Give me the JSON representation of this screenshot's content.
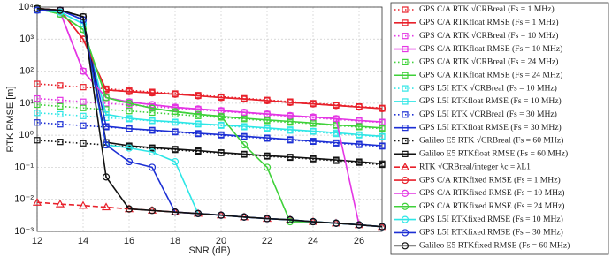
{
  "chart_data": {
    "type": "line",
    "x_label": "SNR (dB)",
    "y_label": "RTK RMSE [m]",
    "x": [
      12,
      13,
      14,
      15,
      16,
      17,
      18,
      19,
      20,
      21,
      22,
      23,
      24,
      25,
      26,
      27
    ],
    "xlim": [
      12,
      27
    ],
    "xticks": [
      12,
      14,
      16,
      18,
      20,
      22,
      24,
      26
    ],
    "ylim": [
      0.001,
      10000
    ],
    "log_y": true,
    "grid": true,
    "legend": "outside right",
    "yticks": [
      {
        "value": 0.001,
        "label": "10⁻³"
      },
      {
        "value": 0.01,
        "label": "10⁻²"
      },
      {
        "value": 0.1,
        "label": "10⁻¹"
      },
      {
        "value": 1,
        "label": "10⁰"
      },
      {
        "value": 10,
        "label": "10¹"
      },
      {
        "value": 100,
        "label": "10²"
      },
      {
        "value": 1000,
        "label": "10³"
      },
      {
        "value": 10000,
        "label": "10⁴"
      }
    ],
    "series": [
      {
        "name": "GPS C/A RTK √CRBreal (Fs = 1 MHz)",
        "color": "#e8212b",
        "dash": "dotted",
        "marker": "square",
        "values": [
          40,
          35.6,
          31.7,
          28.3,
          25.2,
          22.5,
          20,
          17.8,
          15.9,
          14.2,
          12.6,
          11.2,
          10,
          8.9,
          7.9,
          7.1
        ]
      },
      {
        "name": "GPS C/A RTKfloat RMSE (Fs = 1 MHz)",
        "color": "#e8212b",
        "dash": "solid",
        "marker": "square",
        "values": [
          9000,
          8000,
          1000,
          26,
          23,
          21,
          19,
          17,
          15,
          13.5,
          12,
          10.6,
          9.5,
          8.5,
          7.6,
          6.8
        ]
      },
      {
        "name": "GPS C/A RTK √CRBreal (Fs = 10 MHz)",
        "color": "#e436e4",
        "dash": "dotted",
        "marker": "square",
        "values": [
          14,
          12.5,
          11.1,
          9.9,
          8.8,
          7.9,
          7.0,
          6.3,
          5.6,
          5.0,
          4.4,
          3.9,
          3.5,
          3.1,
          2.8,
          2.5
        ]
      },
      {
        "name": "GPS C/A RTKfloat RMSE (Fs = 10 MHz)",
        "color": "#e436e4",
        "dash": "solid",
        "marker": "square",
        "values": [
          8000,
          7000,
          100,
          15,
          11,
          9,
          7.5,
          6.6,
          5.9,
          5.2,
          4.6,
          4.1,
          3.7,
          3.3,
          2.9,
          2.6
        ]
      },
      {
        "name": "GPS C/A RTK √CRBreal (Fs = 24 MHz)",
        "color": "#3fd13a",
        "dash": "dotted",
        "marker": "square",
        "values": [
          9,
          8.0,
          7.1,
          6.4,
          5.7,
          5.1,
          4.5,
          4.0,
          3.6,
          3.2,
          2.8,
          2.5,
          2.3,
          2.0,
          1.8,
          1.6
        ]
      },
      {
        "name": "GPS C/A RTKfloat RMSE (Fs = 24 MHz)",
        "color": "#3fd13a",
        "dash": "solid",
        "marker": "square",
        "values": [
          9000,
          6000,
          2000,
          15,
          10,
          7,
          5.5,
          4.5,
          3.9,
          3.4,
          3.0,
          2.7,
          2.4,
          2.1,
          1.9,
          1.7
        ]
      },
      {
        "name": "GPS L5I RTK √CRBreal (Fs = 10 MHz)",
        "color": "#2ee6e6",
        "dash": "dotted",
        "marker": "square",
        "values": [
          5,
          4.5,
          4.0,
          3.5,
          3.2,
          2.8,
          2.5,
          2.2,
          2.0,
          1.8,
          1.6,
          1.4,
          1.3,
          1.1,
          1.0,
          0.89
        ]
      },
      {
        "name": "GPS L5I RTKfloat RMSE (Fs = 10 MHz)",
        "color": "#2ee6e6",
        "dash": "solid",
        "marker": "square",
        "values": [
          8000,
          7000,
          3000,
          4.5,
          3.4,
          2.9,
          2.6,
          2.3,
          2.1,
          1.9,
          1.7,
          1.5,
          1.35,
          1.2,
          1.05,
          0.93
        ]
      },
      {
        "name": "GPS L5I RTK √CRBreal (Fs = 30 MHz)",
        "color": "#1c2fd4",
        "dash": "dotted",
        "marker": "square",
        "values": [
          2.5,
          2.2,
          2.0,
          1.8,
          1.6,
          1.4,
          1.25,
          1.1,
          1.0,
          0.89,
          0.79,
          0.7,
          0.63,
          0.56,
          0.5,
          0.45
        ]
      },
      {
        "name": "GPS L5I RTKfloat RMSE (Fs = 30 MHz)",
        "color": "#1c2fd4",
        "dash": "solid",
        "marker": "square",
        "values": [
          8000,
          8000,
          4000,
          1.9,
          1.6,
          1.45,
          1.3,
          1.15,
          1.05,
          0.93,
          0.83,
          0.74,
          0.66,
          0.59,
          0.53,
          0.47
        ]
      },
      {
        "name": "Galileo E5 RTK √CRBreal (Fs = 60 MHz)",
        "color": "#111111",
        "dash": "dotted",
        "marker": "square",
        "values": [
          0.7,
          0.62,
          0.56,
          0.5,
          0.44,
          0.39,
          0.35,
          0.31,
          0.28,
          0.25,
          0.22,
          0.2,
          0.18,
          0.16,
          0.14,
          0.12
        ]
      },
      {
        "name": "Galileo E5 RTKfloat RMSE (Fs = 60 MHz)",
        "color": "#111111",
        "dash": "solid",
        "marker": "square",
        "values": [
          9000,
          8000,
          5000,
          0.6,
          0.47,
          0.41,
          0.37,
          0.33,
          0.29,
          0.26,
          0.23,
          0.21,
          0.19,
          0.17,
          0.15,
          0.13
        ]
      },
      {
        "name": "RTK √CRBreal/integer λc = λL1",
        "color": "#e8212b",
        "dash": "dashed",
        "marker": "triangle",
        "values": [
          0.008,
          0.0071,
          0.0064,
          0.0057,
          0.005,
          0.0045,
          0.004,
          0.0036,
          0.0032,
          0.0028,
          0.0025,
          0.0023,
          0.002,
          0.0018,
          0.0016,
          0.0014
        ]
      },
      {
        "name": "GPS C/A RTKfixed RMSE (Fs = 1 MHz)",
        "color": "#e8212b",
        "dash": "solid",
        "marker": "circle",
        "values": [
          9000,
          8000,
          1000,
          26,
          23,
          21,
          19,
          17,
          15,
          13.5,
          12,
          10.6,
          9.5,
          8.5,
          7.6,
          6.8
        ]
      },
      {
        "name": "GPS C/A RTKfixed RMSE (Fs = 10 MHz)",
        "color": "#e436e4",
        "dash": "solid",
        "marker": "circle",
        "values": [
          8000,
          7000,
          100,
          15,
          11,
          9,
          7.5,
          6.6,
          5.9,
          5.2,
          4.6,
          4.1,
          3.7,
          3.3,
          0.0016,
          0.0014
        ]
      },
      {
        "name": "GPS C/A RTKfixed RMSE (Fs = 24 MHz)",
        "color": "#3fd13a",
        "dash": "solid",
        "marker": "circle",
        "values": [
          9000,
          6000,
          2000,
          15,
          10,
          7,
          5.5,
          4.5,
          3.9,
          0.5,
          0.1,
          0.002,
          0.002,
          0.0018,
          0.0016,
          0.0014
        ]
      },
      {
        "name": "GPS L5I RTKfixed RMSE (Fs = 10 MHz)",
        "color": "#2ee6e6",
        "dash": "solid",
        "marker": "circle",
        "values": [
          8000,
          7000,
          3000,
          0.5,
          0.4,
          0.3,
          0.15,
          0.0036,
          0.0032,
          0.0028,
          0.0025,
          0.0023,
          0.002,
          0.0018,
          0.0016,
          0.0014
        ]
      },
      {
        "name": "GPS L5I RTKfixed RMSE (Fs = 30 MHz)",
        "color": "#1c2fd4",
        "dash": "solid",
        "marker": "circle",
        "values": [
          8000,
          8000,
          4000,
          0.5,
          0.15,
          0.1,
          0.004,
          0.0036,
          0.0032,
          0.0028,
          0.0025,
          0.0023,
          0.002,
          0.0018,
          0.0016,
          0.0014
        ]
      },
      {
        "name": "Galileo E5 RTKfixed RMSE (Fs = 60 MHz)",
        "color": "#111111",
        "dash": "solid",
        "marker": "circle",
        "values": [
          9000,
          8000,
          5000,
          0.05,
          0.005,
          0.0045,
          0.004,
          0.0036,
          0.0032,
          0.0028,
          0.0025,
          0.0023,
          0.002,
          0.0018,
          0.0016,
          0.0014
        ]
      }
    ]
  }
}
